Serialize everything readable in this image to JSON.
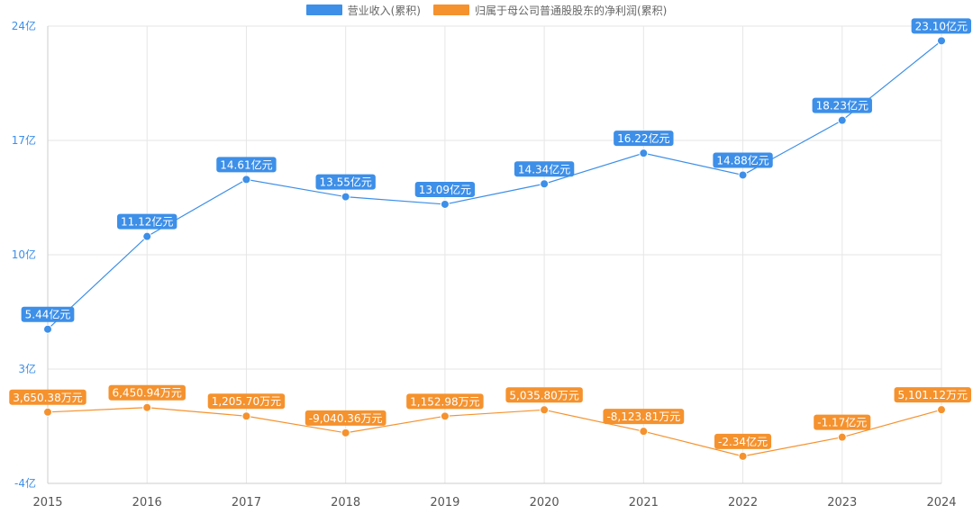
{
  "chart_data": {
    "type": "line",
    "categories": [
      "2015",
      "2016",
      "2017",
      "2018",
      "2019",
      "2020",
      "2021",
      "2022",
      "2023",
      "2024"
    ],
    "y_ticks": [
      "24亿",
      "17亿",
      "10亿",
      "3亿",
      "-4亿"
    ],
    "ylim": [
      -4,
      24
    ],
    "y_unit": "亿",
    "grid": true,
    "legend_position": "top",
    "series": [
      {
        "name": "营业收入(累积)",
        "color": "#3d8fe8",
        "values": [
          5.44,
          11.12,
          14.61,
          13.55,
          13.09,
          14.34,
          16.22,
          14.88,
          18.23,
          23.1
        ],
        "labels": [
          "5.44亿元",
          "11.12亿元",
          "14.61亿元",
          "13.55亿元",
          "13.09亿元",
          "14.34亿元",
          "16.22亿元",
          "14.88亿元",
          "18.23亿元",
          "23.10亿元"
        ]
      },
      {
        "name": "归属于母公司普通股股东的净利润(累积)",
        "color": "#f5922e",
        "values": [
          0.365038,
          0.645094,
          0.12057,
          -0.904036,
          0.115298,
          0.50358,
          -0.812381,
          -2.34,
          -1.17,
          0.510112
        ],
        "labels": [
          "3,650.38万元",
          "6,450.94万元",
          "1,205.70万元",
          "-9,040.36万元",
          "1,152.98万元",
          "5,035.80万元",
          "-8,123.81万元",
          "-2.34亿元",
          "-1.17亿元",
          "5,101.12万元"
        ]
      }
    ]
  }
}
